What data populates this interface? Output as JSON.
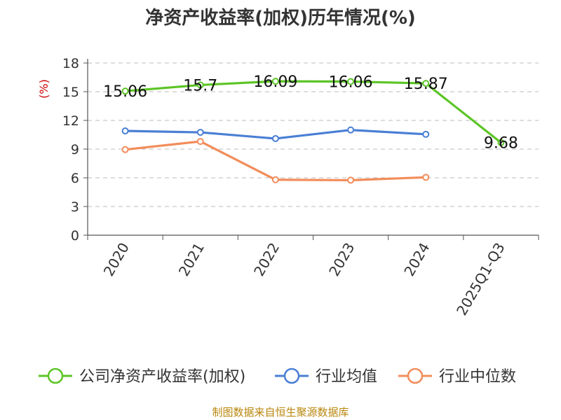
{
  "chart_data": {
    "type": "line",
    "title": "净资产收益率(加权)历年情况(%)",
    "ylabel": "(%)",
    "xlabel": "",
    "categories": [
      "2020",
      "2021",
      "2022",
      "2023",
      "2024",
      "2025Q1-Q3"
    ],
    "yticks": [
      "0",
      "3",
      "6",
      "9",
      "12",
      "15",
      "18"
    ],
    "ylim": [
      0,
      18
    ],
    "grid": true,
    "legend_position": "bottom",
    "series": [
      {
        "name": "公司净资产收益率(加权)",
        "color": "#5cc526",
        "values": [
          15.06,
          15.7,
          16.09,
          16.06,
          15.87,
          9.68
        ],
        "labels": [
          "15.06",
          "15.7",
          "16.09",
          "16.06",
          "15.87",
          "9.68"
        ]
      },
      {
        "name": "行业均值",
        "color": "#4a7fd4",
        "values": [
          10.9,
          10.75,
          10.1,
          11.0,
          10.55,
          null
        ]
      },
      {
        "name": "行业中位数",
        "color": "#f28c5a",
        "values": [
          8.95,
          9.8,
          5.8,
          5.75,
          6.05,
          null
        ]
      }
    ]
  },
  "source": "制图数据来自恒生聚源数据库"
}
